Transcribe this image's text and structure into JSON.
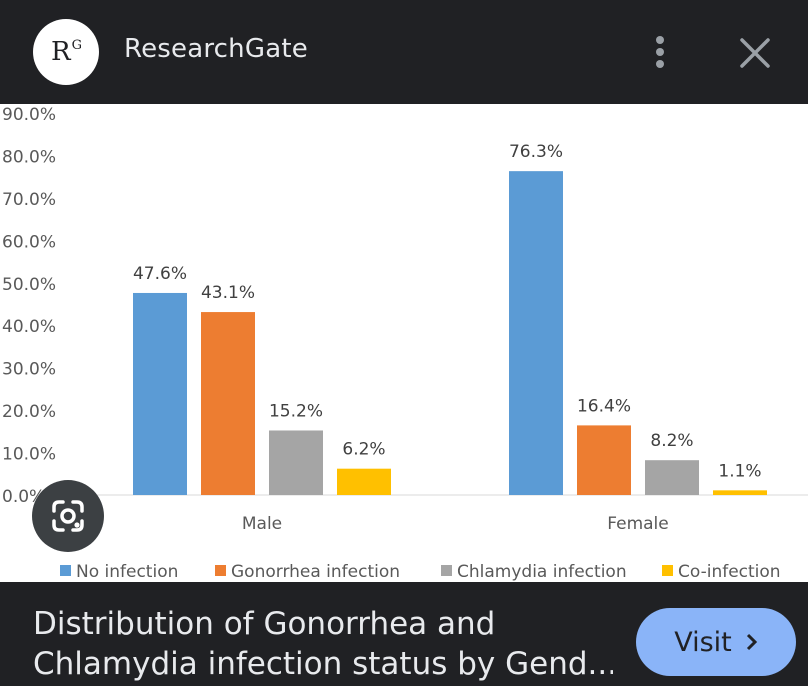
{
  "header": {
    "logo_text": "R",
    "logo_superscript": "G",
    "site_name": "ResearchGate",
    "icons": [
      "more-vert-icon",
      "close-icon"
    ]
  },
  "caption": {
    "line1": "Distribution of Gonorrhea and",
    "line2": "Chlamydia infection status by Gend..."
  },
  "visit_button": {
    "label": "Visit"
  },
  "lens_icon": "google-lens-icon",
  "colors": {
    "background": "#202124",
    "text": "#e8eaed",
    "visit_button": "#8ab4f8"
  },
  "chart_data": {
    "type": "bar",
    "title": "",
    "xlabel": "",
    "ylabel": "",
    "ylim": [
      0,
      90
    ],
    "y_ticks": [
      "0.0%",
      "10.0%",
      "20.0%",
      "30.0%",
      "40.0%",
      "50.0%",
      "60.0%",
      "70.0%",
      "80.0%",
      "90.0%"
    ],
    "categories": [
      "Male",
      "Female"
    ],
    "series": [
      {
        "name": "No infection",
        "color": "#5b9bd5",
        "values": [
          47.6,
          76.3
        ],
        "labels": [
          "47.6%",
          "76.3%"
        ]
      },
      {
        "name": "Gonorrhea infection",
        "color": "#ed7d31",
        "values": [
          43.1,
          16.4
        ],
        "labels": [
          "43.1%",
          "16.4%"
        ]
      },
      {
        "name": "Chlamydia infection",
        "color": "#a5a5a5",
        "values": [
          15.2,
          8.2
        ],
        "labels": [
          "15.2%",
          "8.2%"
        ]
      },
      {
        "name": "Co-infection",
        "color": "#ffc000",
        "values": [
          6.2,
          1.1
        ],
        "labels": [
          "6.2%",
          "1.1%"
        ]
      }
    ],
    "legend_position": "bottom",
    "grid": false
  }
}
